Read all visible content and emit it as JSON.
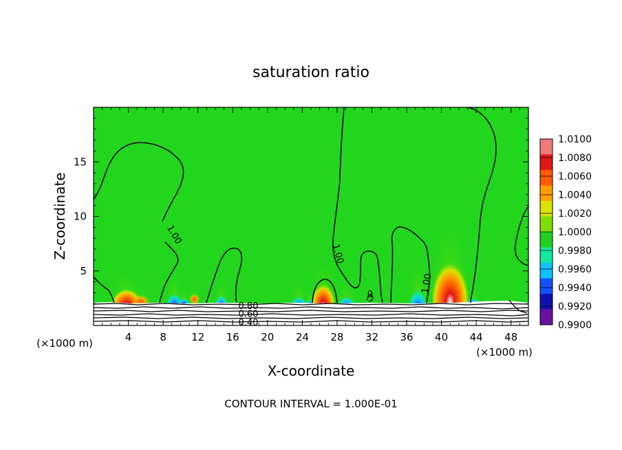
{
  "chart_data": {
    "type": "heatmap",
    "title": "saturation ratio",
    "xlabel": "X-coordinate",
    "ylabel": "Z-coordinate",
    "x_unit_left": "(×1000 m)",
    "x_unit_right": "(×1000 m)",
    "xlim": [
      0,
      50
    ],
    "ylim": [
      0,
      20
    ],
    "x_ticks": [
      4,
      8,
      12,
      16,
      20,
      24,
      28,
      32,
      36,
      40,
      44,
      48
    ],
    "x_tick_labels": [
      "4",
      "8",
      "12",
      "16",
      "20",
      "24",
      "28",
      "32",
      "36",
      "40",
      "44",
      "48"
    ],
    "y_ticks": [
      5,
      10,
      15
    ],
    "y_tick_labels": [
      "5",
      "10",
      "15"
    ],
    "footer": "CONTOUR INTERVAL = 1.000E-01",
    "contour_labels": [
      {
        "text": "1.00",
        "x": 9.0,
        "y": 8.2,
        "rotate": 60
      },
      {
        "text": "1.00",
        "x": 27.8,
        "y": 6.5,
        "rotate": 75
      },
      {
        "text": "1.00",
        "x": 38.6,
        "y": 3.8,
        "rotate": -80
      },
      {
        "text": "0",
        "x": 31.8,
        "y": 2.6,
        "rotate": 0
      },
      {
        "text": "0.80",
        "x": 17.8,
        "y": 1.5,
        "rotate": 0
      },
      {
        "text": "0.60",
        "x": 17.8,
        "y": 0.8,
        "rotate": 0
      },
      {
        "text": "0.40",
        "x": 17.8,
        "y": 0.0,
        "rotate": 0
      }
    ],
    "colorbar": {
      "levels": [
        "1.0100",
        "1.0080",
        "1.0060",
        "1.0040",
        "1.0020",
        "1.0000",
        "0.9980",
        "0.9960",
        "0.9940",
        "0.9920",
        "0.9900"
      ],
      "colors": [
        "#f07a7a",
        "#e01818",
        "#ff5a00",
        "#ffa000",
        "#d8e400",
        "#7ee000",
        "#20d020",
        "#12e8a0",
        "#10c0ff",
        "#1450ff",
        "#1010b0",
        "#6a10a0"
      ]
    },
    "background_color": "#22d61e",
    "hotspots": [
      {
        "x": 3.8,
        "y": 2.4,
        "rx": 1.8,
        "ry": 1.6,
        "peak": "#e01818"
      },
      {
        "x": 5.4,
        "y": 2.3,
        "rx": 1.0,
        "ry": 0.6,
        "peak": "#ff5a00"
      },
      {
        "x": 11.6,
        "y": 2.5,
        "rx": 0.6,
        "ry": 0.5,
        "peak": "#ffa000"
      },
      {
        "x": 26.4,
        "y": 2.6,
        "rx": 1.4,
        "ry": 2.0,
        "peak": "#e01818"
      },
      {
        "x": 41.0,
        "y": 3.6,
        "rx": 2.2,
        "ry": 3.6,
        "peak": "#e01818"
      }
    ],
    "coldspots": [
      {
        "x": 9.3,
        "y": 2.5,
        "rx": 0.9,
        "ry": 1.2
      },
      {
        "x": 10.4,
        "y": 2.3,
        "rx": 0.6,
        "ry": 0.6
      },
      {
        "x": 14.7,
        "y": 2.4,
        "rx": 0.7,
        "ry": 1.0
      },
      {
        "x": 23.6,
        "y": 2.3,
        "rx": 0.9,
        "ry": 1.0
      },
      {
        "x": 24.9,
        "y": 2.2,
        "rx": 0.5,
        "ry": 0.6
      },
      {
        "x": 29.1,
        "y": 2.3,
        "rx": 1.0,
        "ry": 1.0
      },
      {
        "x": 37.3,
        "y": 2.6,
        "rx": 1.1,
        "ry": 2.0
      },
      {
        "x": 43.6,
        "y": 2.3,
        "rx": 0.7,
        "ry": 0.6
      }
    ]
  }
}
